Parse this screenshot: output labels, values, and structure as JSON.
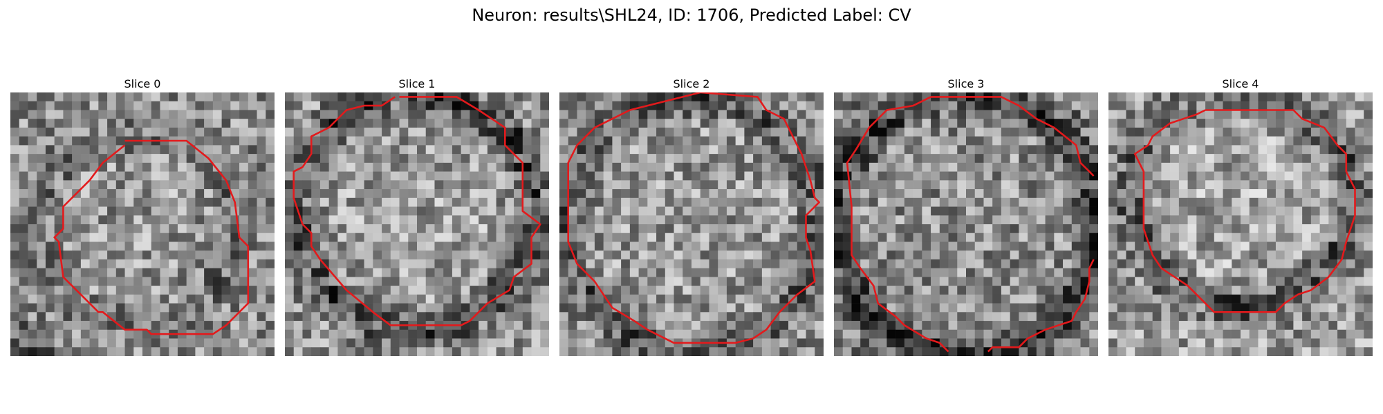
{
  "header": {
    "title": "Neuron: results\\SHL24, ID: 1706, Predicted Label: CV"
  },
  "panels": [
    {
      "label": "Slice 0"
    },
    {
      "label": "Slice 1"
    },
    {
      "label": "Slice 2"
    },
    {
      "label": "Slice 3"
    },
    {
      "label": "Slice 4"
    }
  ],
  "colors": {
    "contour": "#e31a1c",
    "background": "#ffffff"
  }
}
